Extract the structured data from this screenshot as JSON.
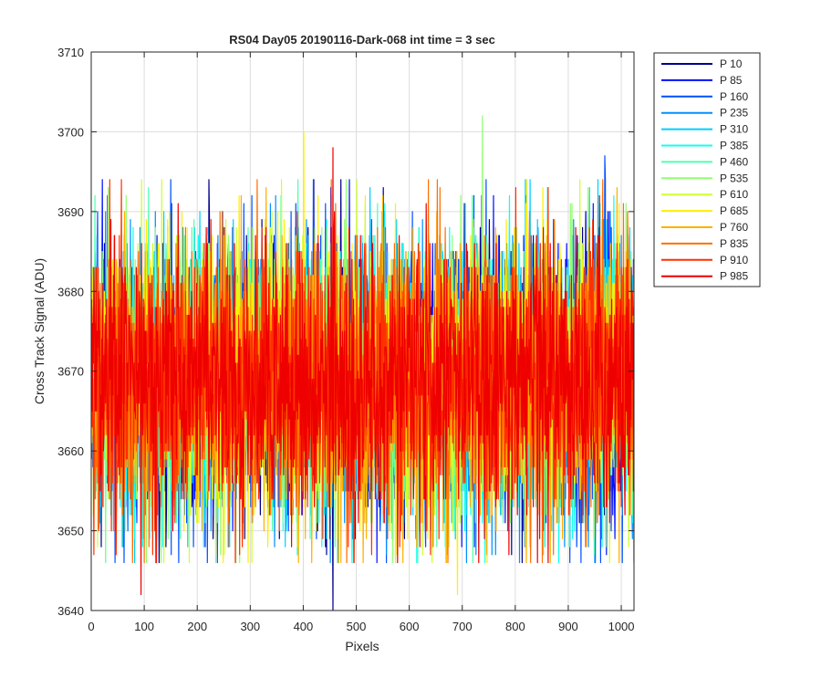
{
  "chart_data": {
    "type": "line",
    "title": "RS04 Day05 20190116-Dark-068 int time = 3 sec",
    "xlabel": "Pixels",
    "ylabel": "Cross Track Signal (ADU)",
    "xlim": [
      0,
      1024
    ],
    "ylim": [
      3640,
      3710
    ],
    "xticks": [
      0,
      100,
      200,
      300,
      400,
      500,
      600,
      700,
      800,
      900,
      1000
    ],
    "yticks": [
      3640,
      3650,
      3660,
      3670,
      3680,
      3690,
      3700,
      3710
    ],
    "grid": true,
    "legend_position": "outside-top-right",
    "n_points_per_series": 1024,
    "noise_summary": {
      "mean_approx": 3669,
      "typical_range": [
        3652,
        3688
      ],
      "notable_extremes": [
        {
          "x": 400,
          "y": 3700,
          "series": "P 685"
        },
        {
          "x": 455,
          "y": 3698,
          "series": "P 985"
        },
        {
          "x": 737,
          "y": 3702,
          "series": "P 535"
        },
        {
          "x": 455,
          "y": 3640,
          "series": "P 10"
        },
        {
          "x": 93,
          "y": 3642,
          "series": "P 985"
        },
        {
          "x": 690,
          "y": 3642,
          "series": "P 685"
        },
        {
          "x": 968,
          "y": 3697,
          "series": "P 160"
        }
      ]
    },
    "series": [
      {
        "name": "P 10",
        "color": "#00008F"
      },
      {
        "name": "P 85",
        "color": "#0010FF"
      },
      {
        "name": "P 160",
        "color": "#0050FF"
      },
      {
        "name": "P 235",
        "color": "#0090FF"
      },
      {
        "name": "P 310",
        "color": "#00CFFF"
      },
      {
        "name": "P 385",
        "color": "#10FFEF"
      },
      {
        "name": "P 460",
        "color": "#50FFAF"
      },
      {
        "name": "P 535",
        "color": "#90FF6F"
      },
      {
        "name": "P 610",
        "color": "#CFFF30"
      },
      {
        "name": "P 685",
        "color": "#FFEF00"
      },
      {
        "name": "P 760",
        "color": "#FFB000"
      },
      {
        "name": "P 835",
        "color": "#FF7000"
      },
      {
        "name": "P 910",
        "color": "#FF3000"
      },
      {
        "name": "P 985",
        "color": "#EF0000"
      }
    ]
  }
}
